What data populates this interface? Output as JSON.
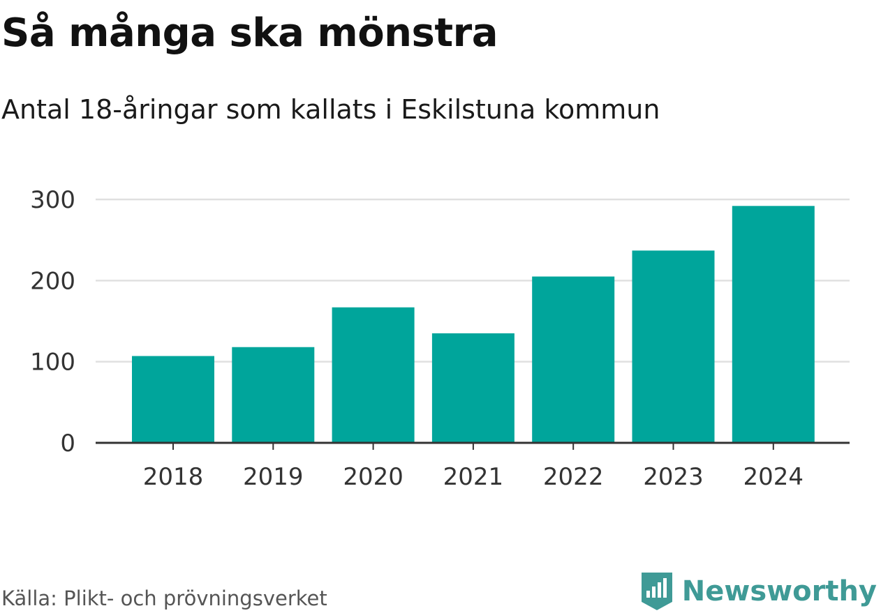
{
  "header": {
    "title": "Så många ska mönstra",
    "subtitle": "Antal 18-åringar som kallats i Eskilstuna kommun"
  },
  "footer": {
    "source": "Källa: Plikt- och prövningsverket",
    "brand": "Newsworthy",
    "brand_icon": "bar-chart-badge-icon"
  },
  "colors": {
    "bar": "#00a59b",
    "grid": "#e0e0e0",
    "axis": "#333333",
    "brand": "#3f9a96"
  },
  "chart_data": {
    "type": "bar",
    "title": "Så många ska mönstra",
    "subtitle": "Antal 18-åringar som kallats i Eskilstuna kommun",
    "categories": [
      "2018",
      "2019",
      "2020",
      "2021",
      "2022",
      "2023",
      "2024"
    ],
    "values": [
      107,
      118,
      167,
      135,
      205,
      237,
      292
    ],
    "xlabel": "",
    "ylabel": "",
    "ylim": [
      0,
      300
    ],
    "yticks": [
      0,
      100,
      200,
      300
    ],
    "grid": true,
    "legend": "none"
  }
}
